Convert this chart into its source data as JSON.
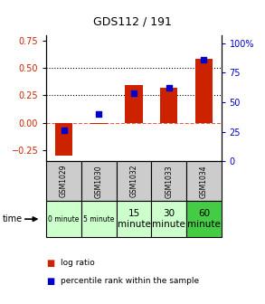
{
  "title": "GDS112 / 191",
  "samples": [
    "GSM1029",
    "GSM1030",
    "GSM1032",
    "GSM1033",
    "GSM1034"
  ],
  "time_labels": [
    "0 minute",
    "5 minute",
    "15\nminute",
    "30\nminute",
    "60\nminute"
  ],
  "log_ratio": [
    -0.3,
    -0.01,
    0.34,
    0.32,
    0.58
  ],
  "percentile": [
    26,
    40,
    58,
    62,
    86
  ],
  "bar_color": "#cc2200",
  "dot_color": "#0000cc",
  "ylim_left": [
    -0.35,
    0.8
  ],
  "ylim_right": [
    0,
    107
  ],
  "yticks_left": [
    -0.25,
    0,
    0.25,
    0.5,
    0.75
  ],
  "yticks_right_vals": [
    0,
    25,
    50,
    75,
    100
  ],
  "yticks_right_labels": [
    "0",
    "25",
    "50",
    "75",
    "100%"
  ],
  "hlines": [
    0.25,
    0.5
  ],
  "background_color": "#ffffff",
  "time_bg_light": "#ccffcc",
  "time_bg_dark": "#44cc44",
  "sample_bg": "#cccccc",
  "legend_bar_label": "log ratio",
  "legend_dot_label": "percentile rank within the sample"
}
